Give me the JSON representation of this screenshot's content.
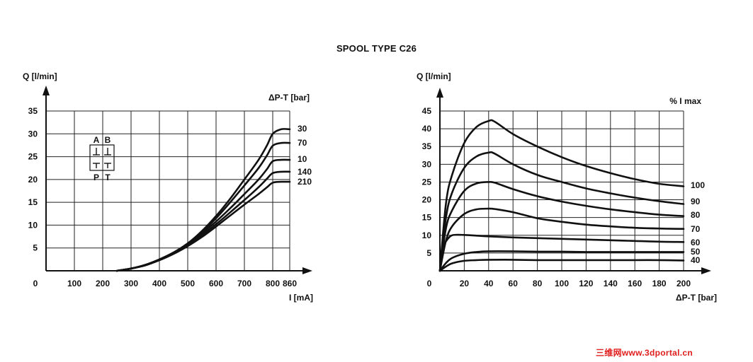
{
  "page_title": "SPOOL TYPE C26",
  "colors": {
    "curve": "#111111",
    "grid": "#222222",
    "watermark": "#e11d1d"
  },
  "watermark": "三维网www.3dportal.cn",
  "chart_data": [
    {
      "type": "line",
      "ylabel": "Q [l/min]",
      "xlabel": "I [mA]",
      "legend_title": "ΔP-T [bar]",
      "x_origin_label": "0",
      "xlim": [
        0,
        860
      ],
      "ylim": [
        0,
        35
      ],
      "x_ticks": [
        100,
        200,
        300,
        400,
        500,
        600,
        700,
        800,
        860
      ],
      "y_ticks": [
        5,
        10,
        15,
        20,
        25,
        30,
        35
      ],
      "grid": true,
      "series": [
        {
          "name": "30",
          "x": [
            250,
            300,
            350,
            400,
            450,
            500,
            550,
            600,
            650,
            700,
            750,
            780,
            800,
            830,
            860
          ],
          "y": [
            0,
            0.5,
            1.3,
            2.5,
            4.0,
            6.0,
            8.7,
            12.0,
            15.8,
            20.0,
            24.3,
            27.5,
            30.0,
            31.0,
            31.0
          ]
        },
        {
          "name": "70",
          "x": [
            250,
            300,
            350,
            400,
            450,
            500,
            550,
            600,
            650,
            700,
            750,
            780,
            800,
            830,
            860
          ],
          "y": [
            0,
            0.5,
            1.3,
            2.5,
            4.0,
            6.0,
            8.5,
            11.5,
            15.0,
            18.7,
            22.5,
            25.3,
            27.4,
            28.0,
            28.0
          ]
        },
        {
          "name": "10",
          "x": [
            250,
            300,
            350,
            400,
            450,
            500,
            550,
            600,
            650,
            700,
            750,
            780,
            800,
            830,
            860
          ],
          "y": [
            0,
            0.5,
            1.2,
            2.4,
            3.9,
            5.8,
            8.2,
            10.8,
            13.7,
            16.8,
            20.0,
            22.3,
            24.0,
            24.3,
            24.3
          ]
        },
        {
          "name": "140",
          "x": [
            250,
            300,
            350,
            400,
            450,
            500,
            550,
            600,
            650,
            700,
            750,
            780,
            800,
            830,
            860
          ],
          "y": [
            0,
            0.5,
            1.2,
            2.4,
            3.8,
            5.6,
            7.8,
            10.2,
            12.8,
            15.5,
            18.3,
            20.2,
            21.4,
            21.7,
            21.7
          ]
        },
        {
          "name": "210",
          "x": [
            250,
            300,
            350,
            400,
            450,
            500,
            550,
            600,
            650,
            700,
            750,
            780,
            800,
            830,
            860
          ],
          "y": [
            0,
            0.5,
            1.2,
            2.3,
            3.7,
            5.4,
            7.4,
            9.7,
            12.1,
            14.5,
            16.8,
            18.3,
            19.3,
            19.5,
            19.5
          ]
        }
      ],
      "inset_symbol": {
        "top_left": "A",
        "top_right": "B",
        "bottom_left": "P",
        "bottom_right": "T"
      }
    },
    {
      "type": "line",
      "ylabel": "Q [l/min]",
      "xlabel": "ΔP-T [bar]",
      "legend_title": "% I max",
      "x_origin_label": "0",
      "xlim": [
        0,
        200
      ],
      "ylim": [
        0,
        45
      ],
      "x_ticks": [
        20,
        40,
        60,
        80,
        100,
        120,
        140,
        160,
        180,
        200
      ],
      "y_ticks": [
        5,
        10,
        15,
        20,
        25,
        30,
        35,
        40,
        45
      ],
      "grid": true,
      "series": [
        {
          "name": "100",
          "x": [
            0,
            5,
            10,
            20,
            30,
            40,
            45,
            60,
            80,
            100,
            120,
            140,
            160,
            180,
            200
          ],
          "y": [
            0,
            19,
            27,
            36,
            40.5,
            42.2,
            42,
            38.5,
            35,
            32,
            29.5,
            27.5,
            25.8,
            24.5,
            23.8
          ]
        },
        {
          "name": "90",
          "x": [
            0,
            5,
            10,
            20,
            30,
            40,
            45,
            60,
            80,
            100,
            120,
            140,
            160,
            180,
            200
          ],
          "y": [
            0,
            15,
            22,
            29,
            32.2,
            33.3,
            33,
            30,
            27,
            25,
            23.2,
            21.8,
            20.6,
            19.6,
            18.8
          ]
        },
        {
          "name": "80",
          "x": [
            0,
            5,
            10,
            20,
            30,
            40,
            45,
            60,
            80,
            100,
            120,
            140,
            160,
            180,
            200
          ],
          "y": [
            0,
            12,
            17,
            22.5,
            24.6,
            25,
            24.8,
            23,
            21,
            19.5,
            18.3,
            17.3,
            16.5,
            15.8,
            15.4
          ]
        },
        {
          "name": "70",
          "x": [
            0,
            5,
            10,
            20,
            30,
            40,
            45,
            60,
            80,
            100,
            120,
            140,
            160,
            180,
            200
          ],
          "y": [
            0,
            8.5,
            12.5,
            16,
            17.3,
            17.5,
            17.4,
            16.5,
            14.8,
            13.8,
            13,
            12.5,
            12.1,
            11.9,
            11.8
          ]
        },
        {
          "name": "60",
          "x": [
            0,
            3,
            5,
            10,
            20,
            30,
            40,
            60,
            80,
            100,
            120,
            140,
            160,
            180,
            200
          ],
          "y": [
            0,
            6.5,
            8.3,
            10,
            10.1,
            9.9,
            9.7,
            9.4,
            9.2,
            9.0,
            8.8,
            8.6,
            8.4,
            8.2,
            8.1
          ]
        },
        {
          "name": "50",
          "x": [
            0,
            5,
            10,
            20,
            30,
            40,
            60,
            80,
            100,
            120,
            140,
            160,
            180,
            200
          ],
          "y": [
            0,
            2.2,
            3.6,
            4.8,
            5.3,
            5.5,
            5.5,
            5.4,
            5.4,
            5.3,
            5.3,
            5.3,
            5.3,
            5.3
          ]
        },
        {
          "name": "40",
          "x": [
            0,
            5,
            10,
            20,
            30,
            40,
            60,
            80,
            100,
            120,
            140,
            160,
            180,
            200
          ],
          "y": [
            0,
            1.2,
            2.1,
            2.8,
            3.0,
            3.1,
            3.1,
            3.0,
            3.0,
            3.0,
            3.0,
            3.0,
            3.0,
            2.9
          ]
        }
      ]
    }
  ]
}
